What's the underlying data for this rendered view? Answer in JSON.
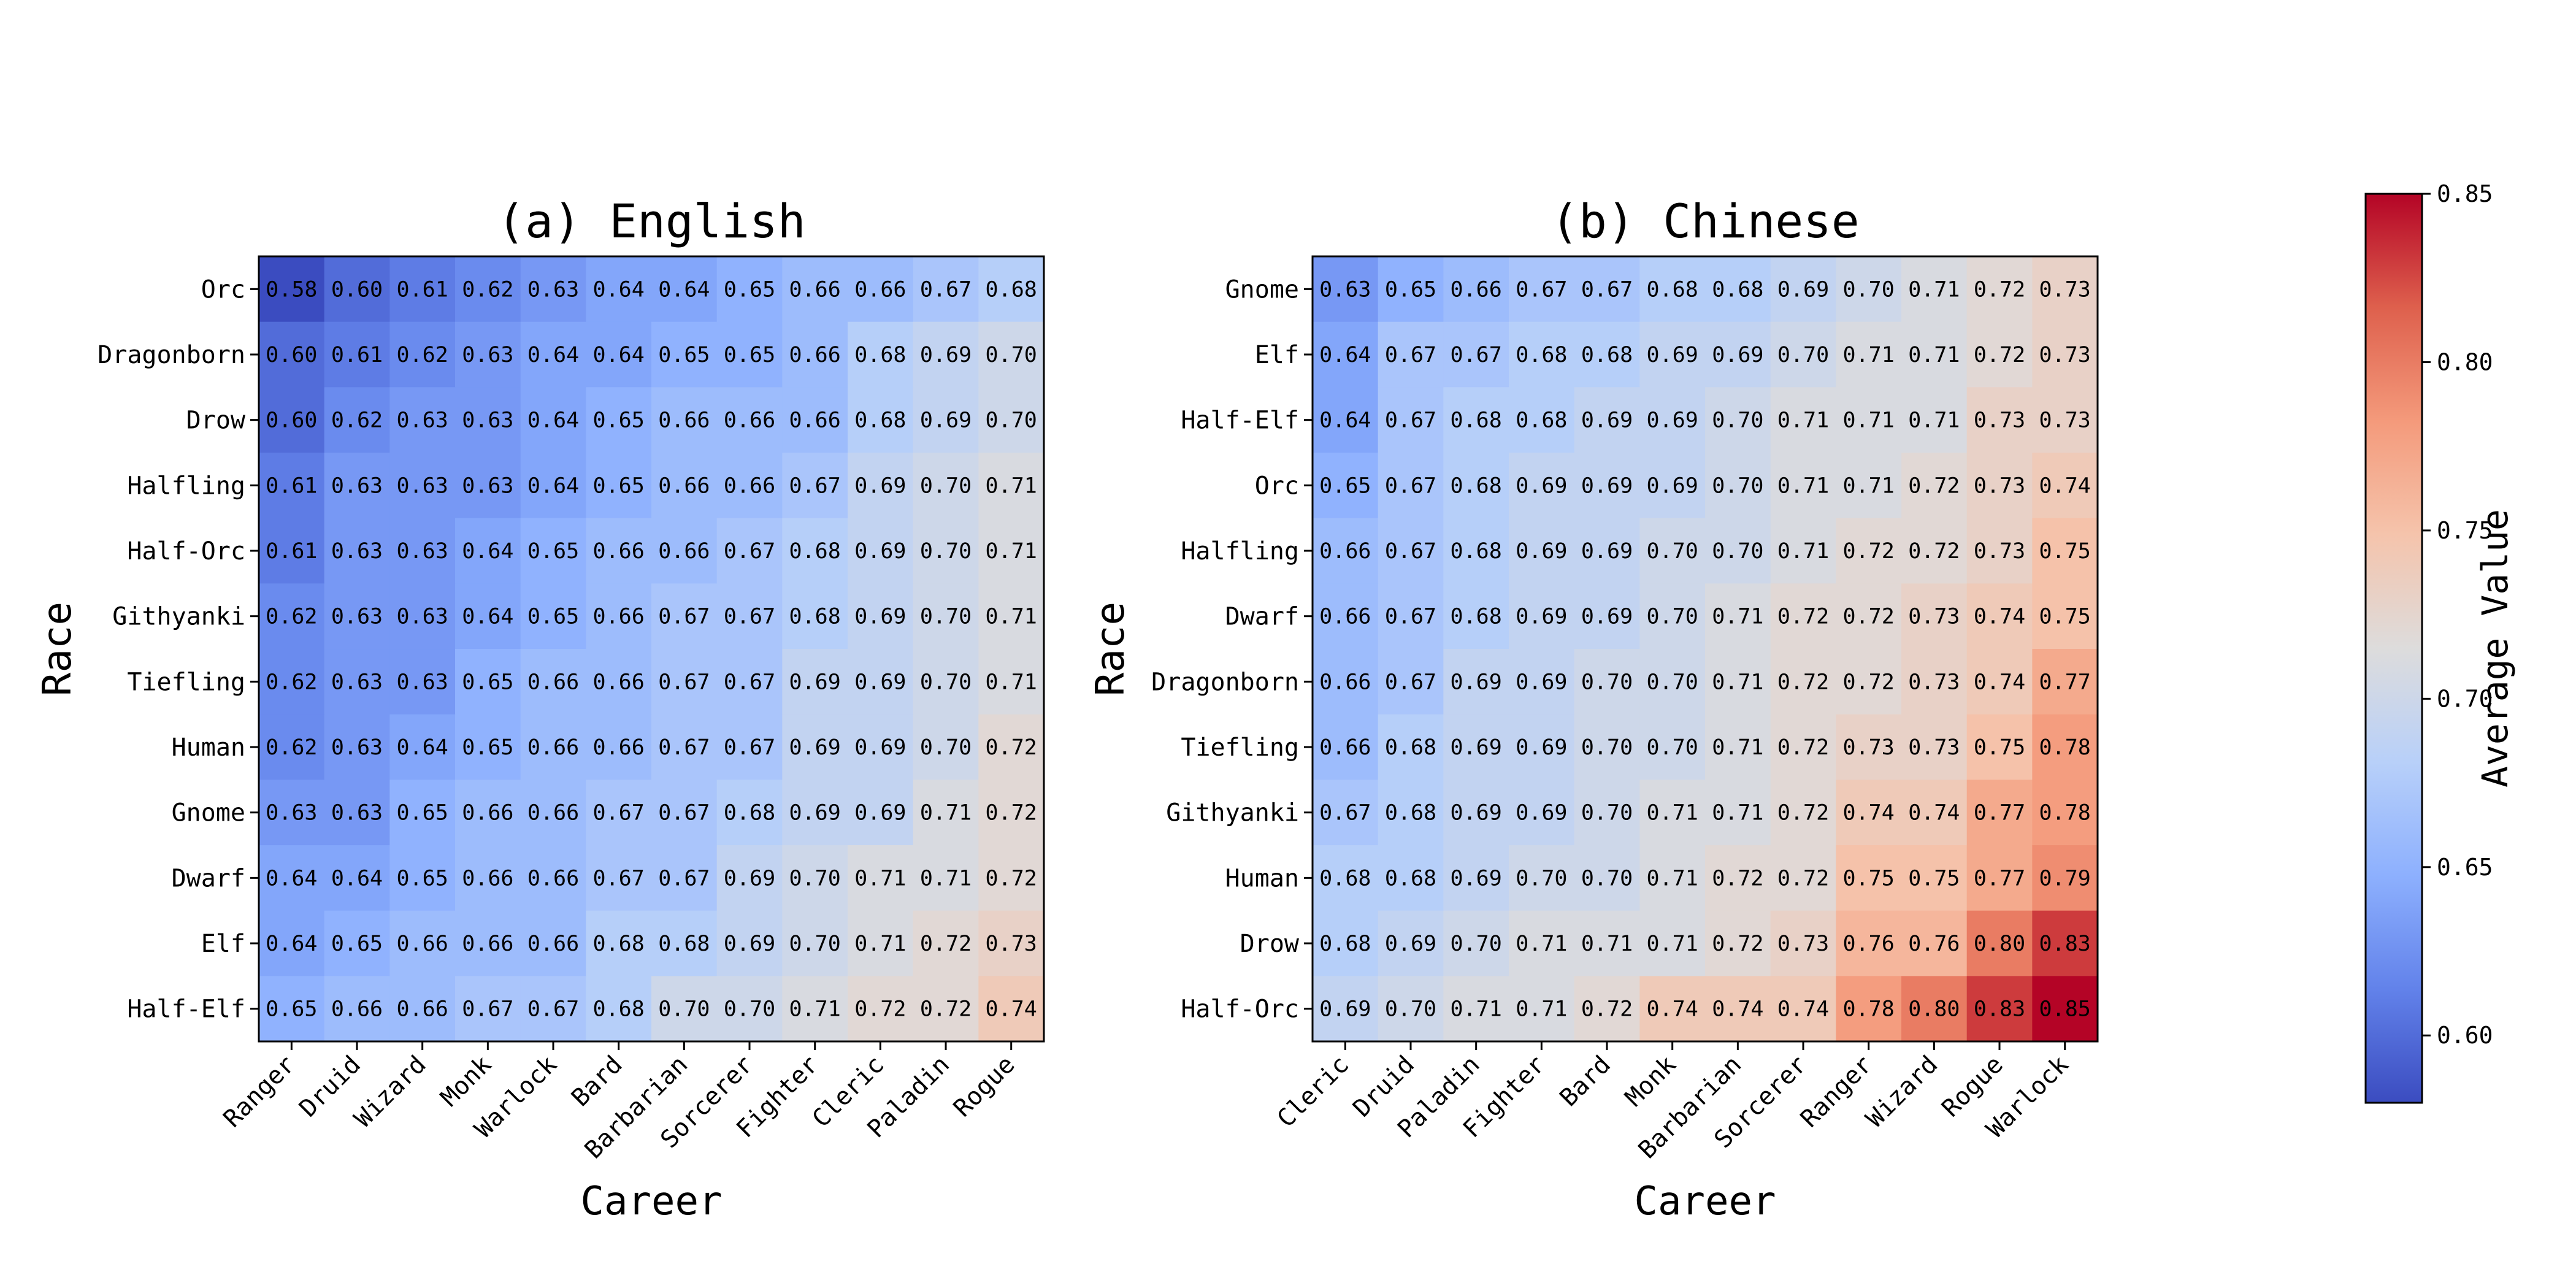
{
  "chart_data": [
    {
      "type": "heatmap",
      "title": "(a) English",
      "xlabel": "Career",
      "ylabel": "Race",
      "x": [
        "Ranger",
        "Druid",
        "Wizard",
        "Monk",
        "Warlock",
        "Bard",
        "Barbarian",
        "Sorcerer",
        "Fighter",
        "Cleric",
        "Paladin",
        "Rogue"
      ],
      "y": [
        "Orc",
        "Dragonborn",
        "Drow",
        "Halfling",
        "Half-Orc",
        "Githyanki",
        "Tiefling",
        "Human",
        "Gnome",
        "Dwarf",
        "Elf",
        "Half-Elf"
      ],
      "values": [
        [
          0.58,
          0.6,
          0.61,
          0.62,
          0.63,
          0.64,
          0.64,
          0.65,
          0.66,
          0.66,
          0.67,
          0.68
        ],
        [
          0.6,
          0.61,
          0.62,
          0.63,
          0.64,
          0.64,
          0.65,
          0.65,
          0.66,
          0.68,
          0.69,
          0.7
        ],
        [
          0.6,
          0.62,
          0.63,
          0.63,
          0.64,
          0.65,
          0.66,
          0.66,
          0.66,
          0.68,
          0.69,
          0.7
        ],
        [
          0.61,
          0.63,
          0.63,
          0.63,
          0.64,
          0.65,
          0.66,
          0.66,
          0.67,
          0.69,
          0.7,
          0.71
        ],
        [
          0.61,
          0.63,
          0.63,
          0.64,
          0.65,
          0.66,
          0.66,
          0.67,
          0.68,
          0.69,
          0.7,
          0.71
        ],
        [
          0.62,
          0.63,
          0.63,
          0.64,
          0.65,
          0.66,
          0.67,
          0.67,
          0.68,
          0.69,
          0.7,
          0.71
        ],
        [
          0.62,
          0.63,
          0.63,
          0.65,
          0.66,
          0.66,
          0.67,
          0.67,
          0.69,
          0.69,
          0.7,
          0.71
        ],
        [
          0.62,
          0.63,
          0.64,
          0.65,
          0.66,
          0.66,
          0.67,
          0.67,
          0.69,
          0.69,
          0.7,
          0.72
        ],
        [
          0.63,
          0.63,
          0.65,
          0.66,
          0.66,
          0.67,
          0.67,
          0.68,
          0.69,
          0.69,
          0.71,
          0.72
        ],
        [
          0.64,
          0.64,
          0.65,
          0.66,
          0.66,
          0.67,
          0.67,
          0.69,
          0.7,
          0.71,
          0.71,
          0.72
        ],
        [
          0.64,
          0.65,
          0.66,
          0.66,
          0.66,
          0.68,
          0.68,
          0.69,
          0.7,
          0.71,
          0.72,
          0.73
        ],
        [
          0.65,
          0.66,
          0.66,
          0.67,
          0.67,
          0.68,
          0.7,
          0.7,
          0.71,
          0.72,
          0.72,
          0.74
        ]
      ]
    },
    {
      "type": "heatmap",
      "title": "(b) Chinese",
      "xlabel": "Career",
      "ylabel": "Race",
      "x": [
        "Cleric",
        "Druid",
        "Paladin",
        "Fighter",
        "Bard",
        "Monk",
        "Barbarian",
        "Sorcerer",
        "Ranger",
        "Wizard",
        "Rogue",
        "Warlock"
      ],
      "y": [
        "Gnome",
        "Elf",
        "Half-Elf",
        "Orc",
        "Halfling",
        "Dwarf",
        "Dragonborn",
        "Tiefling",
        "Githyanki",
        "Human",
        "Drow",
        "Half-Orc"
      ],
      "values": [
        [
          0.63,
          0.65,
          0.66,
          0.67,
          0.67,
          0.68,
          0.68,
          0.69,
          0.7,
          0.71,
          0.72,
          0.73
        ],
        [
          0.64,
          0.67,
          0.67,
          0.68,
          0.68,
          0.69,
          0.69,
          0.7,
          0.71,
          0.71,
          0.72,
          0.73
        ],
        [
          0.64,
          0.67,
          0.68,
          0.68,
          0.69,
          0.69,
          0.7,
          0.71,
          0.71,
          0.71,
          0.73,
          0.73
        ],
        [
          0.65,
          0.67,
          0.68,
          0.69,
          0.69,
          0.69,
          0.7,
          0.71,
          0.71,
          0.72,
          0.73,
          0.74
        ],
        [
          0.66,
          0.67,
          0.68,
          0.69,
          0.69,
          0.7,
          0.7,
          0.71,
          0.72,
          0.72,
          0.73,
          0.75
        ],
        [
          0.66,
          0.67,
          0.68,
          0.69,
          0.69,
          0.7,
          0.71,
          0.72,
          0.72,
          0.73,
          0.74,
          0.75
        ],
        [
          0.66,
          0.67,
          0.69,
          0.69,
          0.7,
          0.7,
          0.71,
          0.72,
          0.72,
          0.73,
          0.74,
          0.77
        ],
        [
          0.66,
          0.68,
          0.69,
          0.69,
          0.7,
          0.7,
          0.71,
          0.72,
          0.73,
          0.73,
          0.75,
          0.78
        ],
        [
          0.67,
          0.68,
          0.69,
          0.69,
          0.7,
          0.71,
          0.71,
          0.72,
          0.74,
          0.74,
          0.77,
          0.78
        ],
        [
          0.68,
          0.68,
          0.69,
          0.7,
          0.7,
          0.71,
          0.72,
          0.72,
          0.75,
          0.75,
          0.77,
          0.79
        ],
        [
          0.68,
          0.69,
          0.7,
          0.71,
          0.71,
          0.71,
          0.72,
          0.73,
          0.76,
          0.76,
          0.8,
          0.83
        ],
        [
          0.69,
          0.7,
          0.71,
          0.71,
          0.72,
          0.74,
          0.74,
          0.74,
          0.78,
          0.8,
          0.83,
          0.85
        ]
      ]
    }
  ],
  "colorbar": {
    "label": "Average Value",
    "range": [
      0.58,
      0.85
    ],
    "ticks": [
      0.6,
      0.65,
      0.7,
      0.75,
      0.8,
      0.85
    ],
    "tick_labels": [
      "0.60",
      "0.65",
      "0.70",
      "0.75",
      "0.80",
      "0.85"
    ],
    "colormap": "coolwarm",
    "colormap_stops": [
      "#3b4cc0",
      "#6282ea",
      "#8db0fe",
      "#b8d0f9",
      "#dddcdc",
      "#f5c4ac",
      "#f49a7b",
      "#de604d",
      "#b40426"
    ]
  }
}
